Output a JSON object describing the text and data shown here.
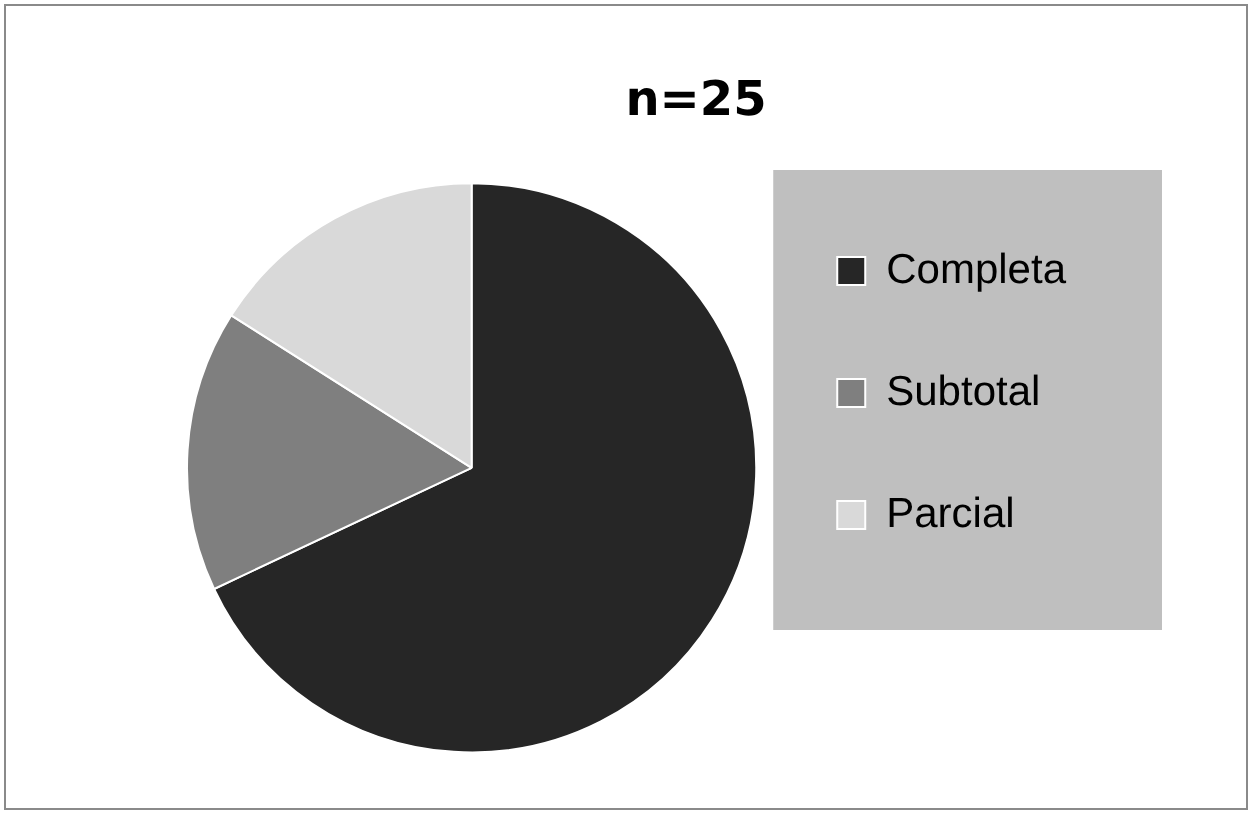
{
  "chart_data": {
    "type": "pie",
    "title": "n=25",
    "categories": [
      "Completa",
      "Subtotal",
      "Parcial"
    ],
    "values": [
      68,
      16,
      16
    ],
    "colors": [
      "#262626",
      "#7f7f7f",
      "#d9d9d9"
    ],
    "legend": "right"
  }
}
